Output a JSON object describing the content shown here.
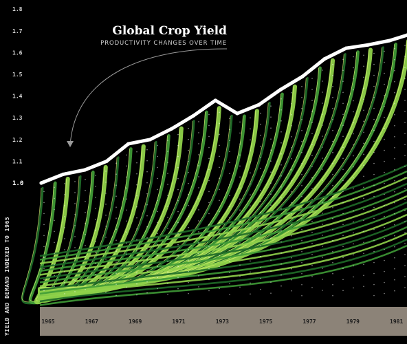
{
  "chart_data": {
    "type": "line",
    "title": "Global Crop Yield",
    "subtitle": "PRODUCTIVITY CHANGES OVER TIME",
    "ylabel": "YIELD AND DEMAND INDEXED TO 1965",
    "xlabel": "",
    "x_ticks": [
      "1965",
      "1967",
      "1969",
      "1971",
      "1973",
      "1975",
      "1977",
      "1979",
      "1981"
    ],
    "y_ticks": [
      "1.0",
      "1.1",
      "1.2",
      "1.3",
      "1.4",
      "1.5",
      "1.6",
      "1.7",
      "1.8"
    ],
    "ylim": [
      1.0,
      1.8
    ],
    "xlim": [
      1965,
      1981.8
    ],
    "series": [
      {
        "x": [
          1965,
          1966,
          1967,
          1968,
          1969,
          1970,
          1971,
          1972,
          1973,
          1974,
          1975,
          1976,
          1977,
          1978,
          1979,
          1980,
          1981,
          1981.8
        ],
        "values": [
          1.0,
          1.04,
          1.06,
          1.1,
          1.18,
          1.2,
          1.25,
          1.31,
          1.38,
          1.32,
          1.36,
          1.43,
          1.49,
          1.57,
          1.62,
          1.635,
          1.655,
          1.68
        ]
      }
    ],
    "colors": {
      "background": "#000000",
      "line": "#ffffff",
      "ribbon_dark": "#1f6b28",
      "ribbon_mid": "#3f9a36",
      "ribbon_light": "#8fd24a",
      "highlight": "#e6f57a",
      "xaxis_band": "#8c8378"
    }
  }
}
